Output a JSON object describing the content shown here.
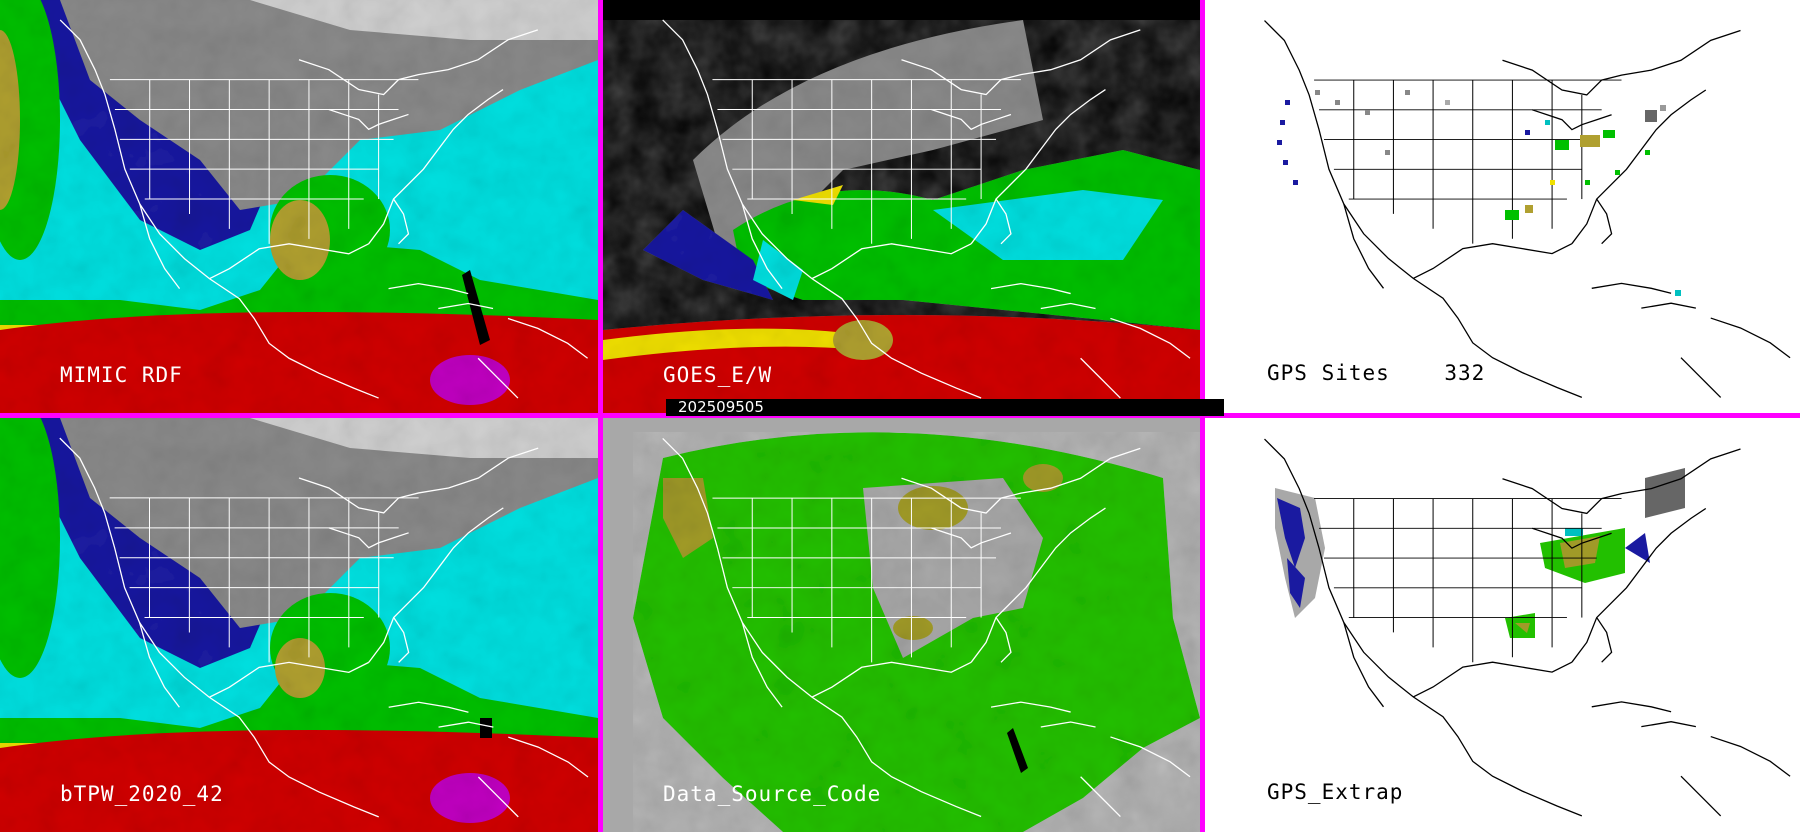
{
  "panels": [
    {
      "label": "MIMIC RDF"
    },
    {
      "label": "GOES_E/W"
    },
    {
      "label": "GPS Sites    332"
    },
    {
      "label": "bTPW_2020_42"
    },
    {
      "label": "Data_Source_Code"
    },
    {
      "label": "GPS_Extrap"
    }
  ],
  "timestamp": "202509505",
  "colors": {
    "frame": "#ff00ff",
    "tpw_scale": [
      "#ffffff",
      "#a0a0a0",
      "#1a1aa0",
      "#00e0e0",
      "#00c000",
      "#b0a030",
      "#ffff00",
      "#e00000",
      "#c000c0"
    ],
    "source_green": "#22c000",
    "source_olive": "#a09a28",
    "source_gray": "#a8a8a8"
  }
}
